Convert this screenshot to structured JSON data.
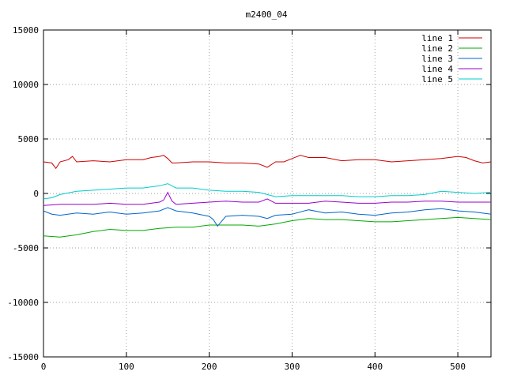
{
  "chart_data": {
    "type": "line",
    "title": "m2400_04",
    "xlabel": "",
    "ylabel": "",
    "xlim": [
      0,
      540
    ],
    "ylim": [
      -15000,
      15000
    ],
    "xticks": [
      0,
      100,
      200,
      300,
      400,
      500
    ],
    "yticks": [
      -15000,
      -10000,
      -5000,
      0,
      5000,
      10000,
      15000
    ],
    "grid": true,
    "legend_position": "top-right",
    "series": [
      {
        "name": "line 1",
        "color": "#cc0000",
        "x": [
          0,
          10,
          15,
          20,
          30,
          35,
          40,
          60,
          80,
          100,
          120,
          130,
          140,
          145,
          150,
          155,
          160,
          180,
          200,
          220,
          240,
          260,
          270,
          280,
          290,
          300,
          310,
          320,
          340,
          360,
          380,
          400,
          420,
          440,
          460,
          480,
          500,
          510,
          520,
          530,
          540
        ],
        "y": [
          2900,
          2800,
          2300,
          2900,
          3100,
          3400,
          2900,
          3000,
          2900,
          3100,
          3100,
          3300,
          3400,
          3500,
          3200,
          2800,
          2800,
          2900,
          2900,
          2800,
          2800,
          2700,
          2400,
          2900,
          2900,
          3200,
          3500,
          3300,
          3300,
          3000,
          3100,
          3100,
          2900,
          3000,
          3100,
          3200,
          3400,
          3300,
          3000,
          2800,
          2900
        ]
      },
      {
        "name": "line 2",
        "color": "#00aa00",
        "x": [
          0,
          20,
          40,
          60,
          80,
          100,
          120,
          140,
          160,
          180,
          200,
          220,
          240,
          260,
          280,
          300,
          320,
          340,
          360,
          380,
          400,
          420,
          440,
          460,
          480,
          500,
          520,
          540
        ],
        "y": [
          -3900,
          -4000,
          -3800,
          -3500,
          -3300,
          -3400,
          -3400,
          -3200,
          -3100,
          -3100,
          -2900,
          -2900,
          -2900,
          -3000,
          -2800,
          -2500,
          -2300,
          -2400,
          -2400,
          -2500,
          -2600,
          -2600,
          -2500,
          -2400,
          -2300,
          -2200,
          -2300,
          -2400
        ]
      },
      {
        "name": "line 3",
        "color": "#0066cc",
        "x": [
          0,
          10,
          20,
          40,
          60,
          80,
          100,
          120,
          140,
          150,
          160,
          180,
          200,
          205,
          210,
          220,
          240,
          260,
          270,
          280,
          300,
          320,
          340,
          360,
          380,
          400,
          420,
          440,
          460,
          480,
          500,
          520,
          540
        ],
        "y": [
          -1600,
          -1900,
          -2000,
          -1800,
          -1900,
          -1700,
          -1900,
          -1800,
          -1600,
          -1300,
          -1600,
          -1800,
          -2100,
          -2400,
          -3000,
          -2100,
          -2000,
          -2100,
          -2300,
          -2000,
          -1900,
          -1500,
          -1800,
          -1700,
          -1900,
          -2000,
          -1800,
          -1700,
          -1500,
          -1400,
          -1600,
          -1700,
          -1900
        ]
      },
      {
        "name": "line 4",
        "color": "#9900cc",
        "x": [
          0,
          20,
          40,
          60,
          80,
          100,
          120,
          140,
          145,
          150,
          155,
          160,
          180,
          200,
          220,
          240,
          260,
          270,
          280,
          300,
          320,
          340,
          360,
          380,
          400,
          420,
          440,
          460,
          480,
          500,
          520,
          540
        ],
        "y": [
          -1100,
          -1000,
          -1000,
          -1000,
          -900,
          -1000,
          -1000,
          -800,
          -600,
          100,
          -700,
          -1000,
          -900,
          -800,
          -700,
          -800,
          -800,
          -500,
          -900,
          -900,
          -900,
          -700,
          -800,
          -900,
          -900,
          -800,
          -800,
          -700,
          -700,
          -800,
          -800,
          -800
        ]
      },
      {
        "name": "line 5",
        "color": "#00cccc",
        "x": [
          0,
          10,
          20,
          40,
          60,
          80,
          100,
          120,
          140,
          150,
          160,
          180,
          200,
          220,
          240,
          260,
          280,
          300,
          320,
          340,
          360,
          380,
          400,
          420,
          440,
          460,
          480,
          500,
          520,
          540
        ],
        "y": [
          -500,
          -400,
          -100,
          200,
          300,
          400,
          500,
          500,
          700,
          900,
          500,
          500,
          300,
          200,
          200,
          100,
          -300,
          -200,
          -200,
          -200,
          -200,
          -300,
          -300,
          -200,
          -200,
          -100,
          200,
          100,
          0,
          100
        ]
      }
    ]
  }
}
